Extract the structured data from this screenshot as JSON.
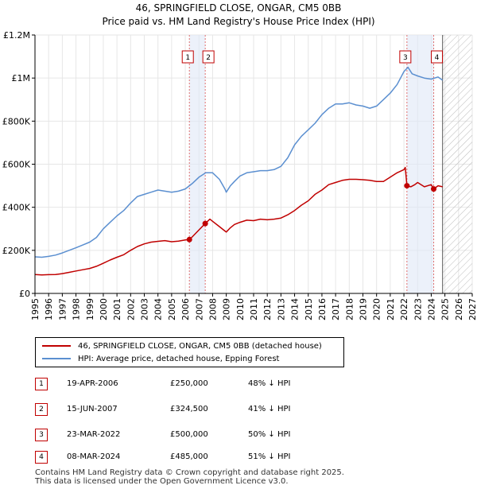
{
  "chart_data": {
    "type": "line",
    "title": "46, SPRINGFIELD CLOSE, ONGAR, CM5 0BB",
    "subtitle": "Price paid vs. HM Land Registry's House Price Index (HPI)",
    "xlim": [
      1995,
      2027
    ],
    "ylim": [
      0,
      1200000
    ],
    "x_ticks": [
      "1995",
      "1996",
      "1997",
      "1998",
      "1999",
      "2000",
      "2001",
      "2002",
      "2003",
      "2004",
      "2005",
      "2006",
      "2007",
      "2008",
      "2009",
      "2010",
      "2011",
      "2012",
      "2013",
      "2014",
      "2015",
      "2016",
      "2017",
      "2018",
      "2019",
      "2020",
      "2021",
      "2022",
      "2023",
      "2024",
      "2025",
      "2026",
      "2027"
    ],
    "y_ticks": [
      {
        "value": 0,
        "label": "£0"
      },
      {
        "value": 200000,
        "label": "£200K"
      },
      {
        "value": 400000,
        "label": "£400K"
      },
      {
        "value": 600000,
        "label": "£600K"
      },
      {
        "value": 800000,
        "label": "£800K"
      },
      {
        "value": 1000000,
        "label": "£1M"
      },
      {
        "value": 1200000,
        "label": "£1.2M"
      }
    ],
    "grid": true,
    "shade_ranges": [
      [
        2006.3,
        2007.46
      ],
      [
        2022.22,
        2024.18
      ]
    ],
    "future_hatch_from": 2024.83,
    "series": [
      {
        "name": "46, SPRINGFIELD CLOSE, ONGAR, CM5 0BB (detached house)",
        "color": "#c00000",
        "x": [
          1995,
          1995.5,
          1996,
          1996.5,
          1997,
          1997.5,
          1998,
          1998.5,
          1999,
          1999.5,
          2000,
          2000.5,
          2001,
          2001.5,
          2002,
          2002.5,
          2003,
          2003.5,
          2004,
          2004.5,
          2005,
          2005.5,
          2006,
          2006.3,
          2006.5,
          2007,
          2007.46,
          2007.8,
          2008,
          2008.5,
          2008.9,
          2009,
          2009.3,
          2009.6,
          2010,
          2010.5,
          2011,
          2011.5,
          2012,
          2012.5,
          2013,
          2013.5,
          2014,
          2014.5,
          2015,
          2015.5,
          2016,
          2016.5,
          2017,
          2017.5,
          2018,
          2018.5,
          2019,
          2019.5,
          2020,
          2020.5,
          2021,
          2021.5,
          2022,
          2022.1,
          2022.22,
          2022.5,
          2022.8,
          2023,
          2023.5,
          2024,
          2024.18,
          2024.5,
          2024.83
        ],
        "values": [
          88000,
          86000,
          87000,
          88000,
          92000,
          98000,
          104000,
          110000,
          116000,
          126000,
          140000,
          155000,
          168000,
          180000,
          200000,
          218000,
          230000,
          238000,
          242000,
          245000,
          240000,
          243000,
          248000,
          250000,
          262000,
          295000,
          324500,
          345000,
          335000,
          310000,
          290000,
          285000,
          305000,
          320000,
          330000,
          340000,
          338000,
          345000,
          342000,
          345000,
          350000,
          365000,
          385000,
          410000,
          430000,
          460000,
          480000,
          505000,
          515000,
          525000,
          530000,
          530000,
          528000,
          525000,
          520000,
          520000,
          540000,
          560000,
          575000,
          585000,
          500000,
          495000,
          505000,
          515000,
          495000,
          505000,
          485000,
          500000,
          495000
        ]
      },
      {
        "name": "HPI: Average price, detached house, Epping Forest",
        "color": "#5b8fd0",
        "x": [
          1995,
          1995.5,
          1996,
          1996.5,
          1997,
          1997.5,
          1998,
          1998.5,
          1999,
          1999.5,
          2000,
          2000.5,
          2001,
          2001.5,
          2002,
          2002.5,
          2003,
          2003.5,
          2004,
          2004.5,
          2005,
          2005.5,
          2006,
          2006.5,
          2007,
          2007.5,
          2008,
          2008.5,
          2008.9,
          2009,
          2009.3,
          2009.6,
          2010,
          2010.5,
          2011,
          2011.5,
          2012,
          2012.5,
          2013,
          2013.5,
          2014,
          2014.5,
          2015,
          2015.5,
          2016,
          2016.5,
          2017,
          2017.5,
          2018,
          2018.5,
          2019,
          2019.5,
          2020,
          2020.5,
          2021,
          2021.5,
          2022,
          2022.3,
          2022.6,
          2023,
          2023.5,
          2024,
          2024.5,
          2024.83
        ],
        "values": [
          170000,
          168000,
          172000,
          178000,
          188000,
          200000,
          212000,
          225000,
          238000,
          260000,
          300000,
          330000,
          360000,
          385000,
          420000,
          450000,
          460000,
          470000,
          480000,
          475000,
          470000,
          475000,
          485000,
          510000,
          540000,
          560000,
          560000,
          530000,
          485000,
          470000,
          500000,
          520000,
          545000,
          560000,
          565000,
          570000,
          570000,
          575000,
          590000,
          630000,
          690000,
          730000,
          760000,
          790000,
          830000,
          860000,
          880000,
          880000,
          885000,
          875000,
          870000,
          860000,
          870000,
          900000,
          930000,
          970000,
          1030000,
          1050000,
          1020000,
          1010000,
          1000000,
          995000,
          1005000,
          990000
        ]
      }
    ],
    "markers": [
      {
        "label": "1",
        "x": 2006.3,
        "value": 250000
      },
      {
        "label": "2",
        "x": 2007.46,
        "value": 324500
      },
      {
        "label": "3",
        "x": 2022.22,
        "value": 500000
      },
      {
        "label": "4",
        "x": 2024.18,
        "value": 485000
      }
    ]
  },
  "legend": {
    "items": [
      {
        "label": "46, SPRINGFIELD CLOSE, ONGAR, CM5 0BB (detached house)",
        "color": "#c00000"
      },
      {
        "label": "HPI: Average price, detached house, Epping Forest",
        "color": "#5b8fd0"
      }
    ]
  },
  "transactions": [
    {
      "num": "1",
      "date": "19-APR-2006",
      "price": "£250,000",
      "hpi": "48% ↓ HPI"
    },
    {
      "num": "2",
      "date": "15-JUN-2007",
      "price": "£324,500",
      "hpi": "41% ↓ HPI"
    },
    {
      "num": "3",
      "date": "23-MAR-2022",
      "price": "£500,000",
      "hpi": "50% ↓ HPI"
    },
    {
      "num": "4",
      "date": "08-MAR-2024",
      "price": "£485,000",
      "hpi": "51% ↓ HPI"
    }
  ],
  "footer": {
    "line1": "Contains HM Land Registry data © Crown copyright and database right 2025.",
    "line2": "This data is licensed under the Open Government Licence v3.0."
  }
}
